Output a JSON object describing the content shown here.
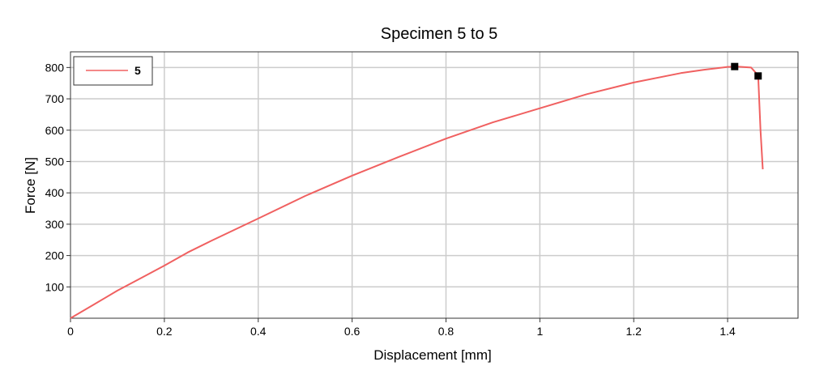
{
  "chart_data": {
    "type": "line",
    "title": "Specimen 5 to 5",
    "xlabel": "Displacement [mm]",
    "ylabel": "Force [N]",
    "xlim": [
      0,
      1.55
    ],
    "ylim": [
      0,
      850
    ],
    "x_ticks": [
      0,
      0.2,
      0.4,
      0.6,
      0.8,
      1,
      1.2,
      1.4
    ],
    "x_tick_labels": [
      "0",
      "0.2",
      "0.4",
      "0.6",
      "0.8",
      "1",
      "1.2",
      "1.4"
    ],
    "y_ticks": [
      100,
      200,
      300,
      400,
      500,
      600,
      700,
      800
    ],
    "y_tick_labels": [
      "100",
      "200",
      "300",
      "400",
      "500",
      "600",
      "700",
      "800"
    ],
    "grid": true,
    "legend_position": "top-left",
    "series": [
      {
        "name": "5",
        "color": "#f06060",
        "x": [
          0,
          0.05,
          0.1,
          0.15,
          0.2,
          0.25,
          0.3,
          0.4,
          0.5,
          0.6,
          0.7,
          0.8,
          0.9,
          1.0,
          1.1,
          1.2,
          1.3,
          1.35,
          1.4,
          1.42,
          1.45,
          1.465,
          1.47,
          1.475
        ],
        "y": [
          0,
          44,
          88,
          128,
          168,
          210,
          247,
          318,
          390,
          455,
          515,
          573,
          625,
          670,
          715,
          752,
          782,
          793,
          802,
          803,
          800,
          775,
          600,
          475
        ]
      }
    ],
    "markers": [
      {
        "x": 1.415,
        "y": 803
      },
      {
        "x": 1.465,
        "y": 773
      }
    ]
  }
}
